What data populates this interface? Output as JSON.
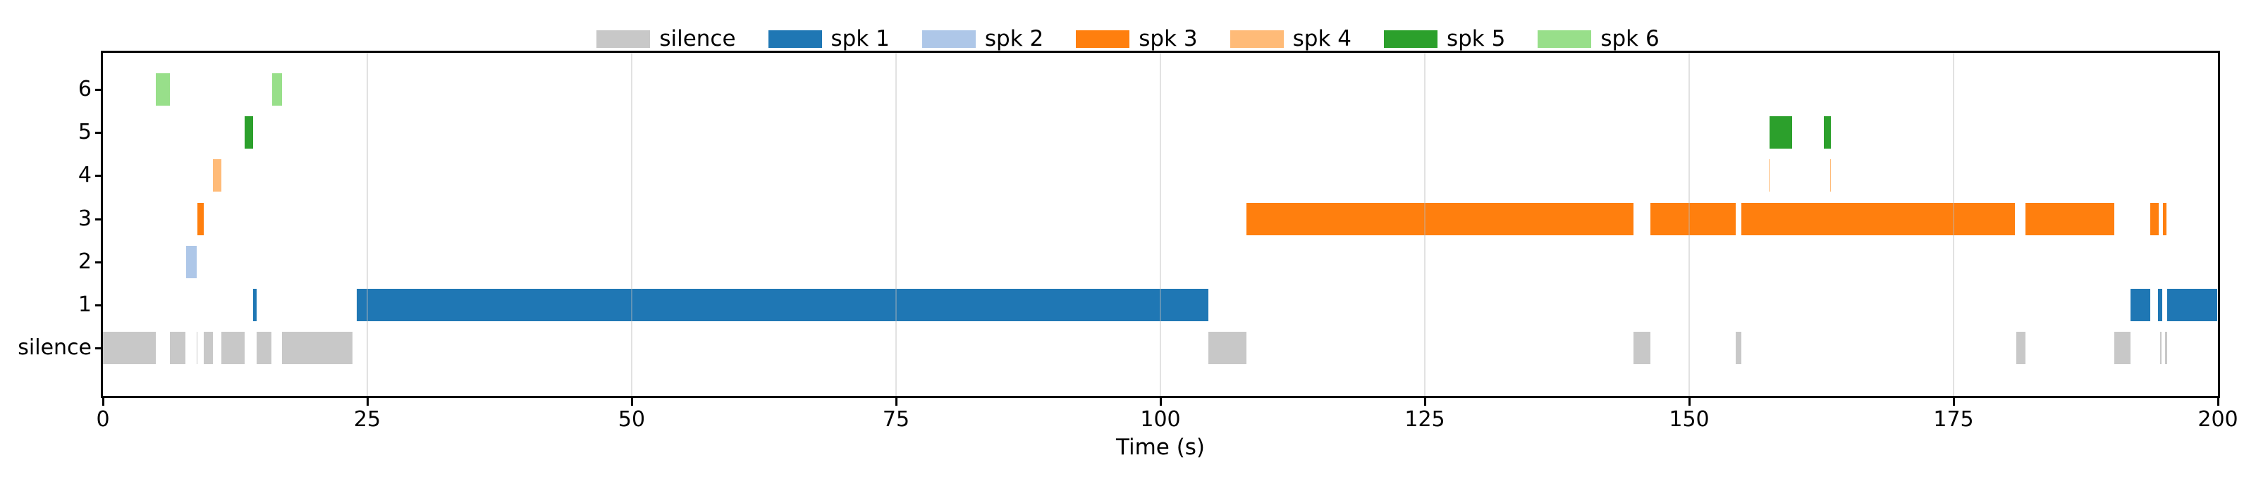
{
  "xlabel": "Time (s)",
  "chart_data": {
    "type": "bar",
    "variant": "speaker-diarization-timeline (broken horizontal bars)",
    "title": "",
    "xlabel": "Time (s)",
    "ylabel": "",
    "xlim": [
      0,
      200
    ],
    "xticks": [
      0,
      25,
      50,
      75,
      100,
      125,
      150,
      175,
      200
    ],
    "ylabels_bottom_to_top": [
      "silence",
      "1",
      "2",
      "3",
      "4",
      "5",
      "6"
    ],
    "grid": "vertical gridlines at x ticks, drawn faint over bars",
    "legend_position": "top center, outside axes, single row",
    "legend_entries": [
      {
        "label": "silence",
        "color": "#c8c8c8"
      },
      {
        "label": "spk 1",
        "color": "#1f77b4"
      },
      {
        "label": "spk 2",
        "color": "#aec7e8"
      },
      {
        "label": "spk 3",
        "color": "#ff7f0e"
      },
      {
        "label": "spk 4",
        "color": "#ffbb78"
      },
      {
        "label": "spk 5",
        "color": "#2ca02c"
      },
      {
        "label": "spk 6",
        "color": "#98df8a"
      }
    ],
    "rows": [
      {
        "axis_label": "silence",
        "legend": "silence",
        "color": "#c8c8c8",
        "segments": [
          [
            0.0,
            5.0
          ],
          [
            6.3,
            7.8
          ],
          [
            8.85,
            8.95
          ],
          [
            9.5,
            10.4
          ],
          [
            11.2,
            13.4
          ],
          [
            14.5,
            15.9
          ],
          [
            16.9,
            23.6
          ],
          [
            104.5,
            108.1
          ],
          [
            144.7,
            146.3
          ],
          [
            154.4,
            154.9
          ],
          [
            180.9,
            181.8
          ],
          [
            190.2,
            191.7
          ],
          [
            194.55,
            194.7
          ],
          [
            195.0,
            195.2
          ]
        ]
      },
      {
        "axis_label": "1",
        "legend": "spk 1",
        "color": "#1f77b4",
        "segments": [
          [
            14.2,
            14.5
          ],
          [
            24.0,
            104.5
          ],
          [
            191.7,
            193.6
          ],
          [
            194.3,
            194.7
          ],
          [
            195.2,
            199.9
          ]
        ]
      },
      {
        "axis_label": "2",
        "legend": "spk 2",
        "color": "#aec7e8",
        "segments": [
          [
            7.85,
            8.85
          ]
        ]
      },
      {
        "axis_label": "3",
        "legend": "spk 3",
        "color": "#ff7f0e",
        "segments": [
          [
            8.95,
            9.5
          ],
          [
            108.1,
            144.7
          ],
          [
            146.3,
            154.4
          ],
          [
            154.9,
            180.8
          ],
          [
            181.8,
            190.2
          ],
          [
            193.6,
            194.4
          ],
          [
            194.8,
            195.1
          ]
        ]
      },
      {
        "axis_label": "4",
        "legend": "spk 4",
        "color": "#ffbb78",
        "segments": [
          [
            10.4,
            11.2
          ],
          [
            157.5,
            157.6
          ],
          [
            163.3,
            163.4
          ]
        ]
      },
      {
        "axis_label": "5",
        "legend": "spk 5",
        "color": "#2ca02c",
        "segments": [
          [
            13.4,
            14.2
          ],
          [
            157.6,
            159.7
          ],
          [
            162.7,
            163.4
          ]
        ]
      },
      {
        "axis_label": "6",
        "legend": "spk 6",
        "color": "#98df8a",
        "segments": [
          [
            5.0,
            6.3
          ],
          [
            16.0,
            16.9
          ]
        ]
      }
    ]
  }
}
